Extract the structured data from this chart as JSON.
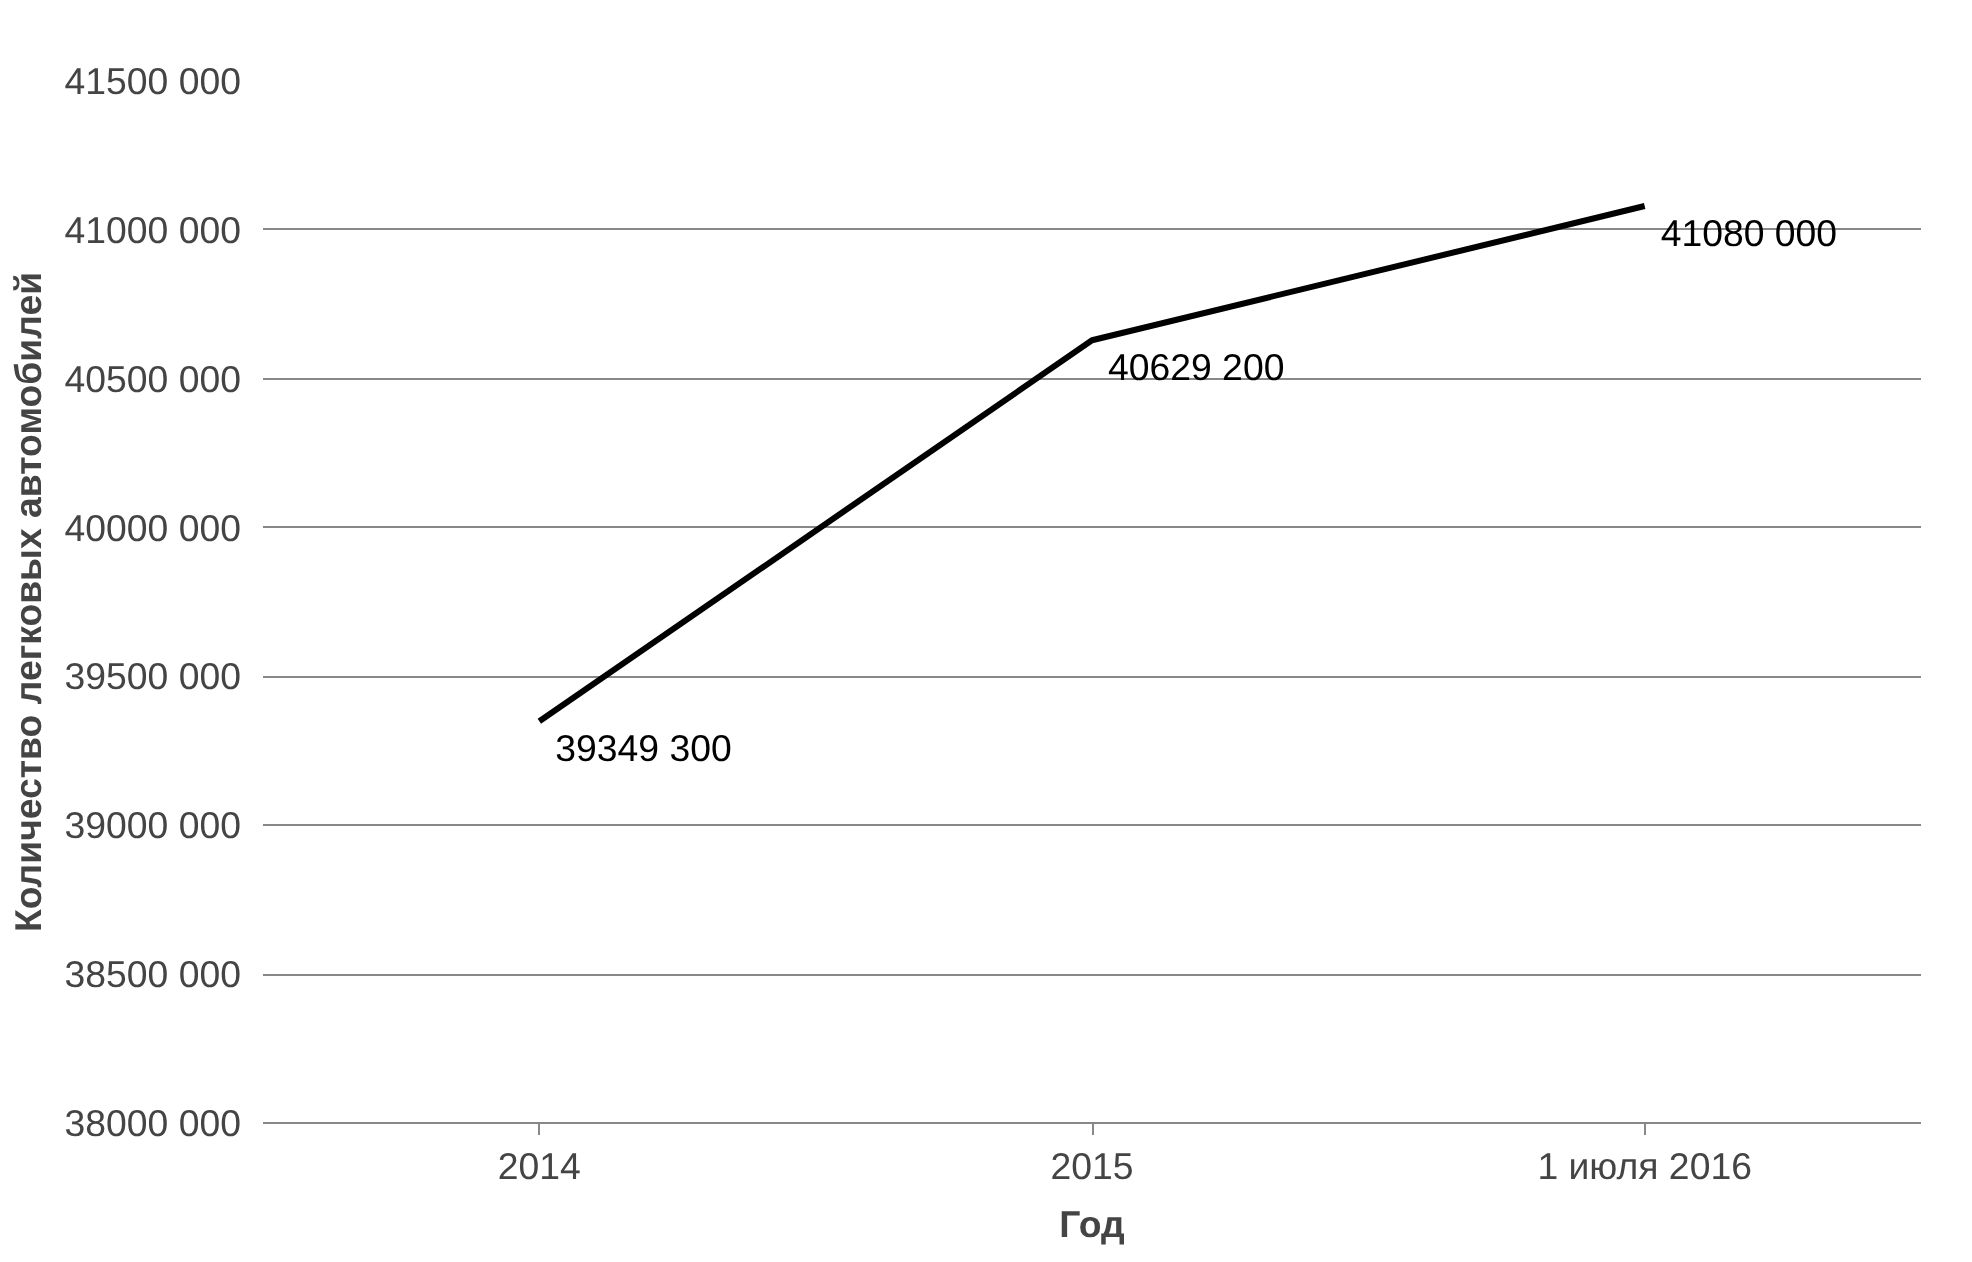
{
  "chart_data": {
    "type": "line",
    "xlabel": "Год",
    "ylabel": "Количество легковых автомобилей",
    "categories": [
      "2014",
      "2015",
      "1 июля 2016"
    ],
    "series": [
      {
        "color": "#000000",
        "values": [
          39349300,
          40629200,
          41080000
        ],
        "value_labels": [
          "39349 300",
          "40629 200",
          "41080 000"
        ]
      }
    ],
    "ylim": [
      38000000,
      41500000
    ],
    "yticks": [
      {
        "value": 38000000,
        "label": "38000 000"
      },
      {
        "value": 38500000,
        "label": "38500 000"
      },
      {
        "value": 39000000,
        "label": "39000 000"
      },
      {
        "value": 39500000,
        "label": "39500 000"
      },
      {
        "value": 40000000,
        "label": "40000 000"
      },
      {
        "value": 40500000,
        "label": "40500 000"
      },
      {
        "value": 41000000,
        "label": "41000 000"
      },
      {
        "value": 41500000,
        "label": "41500 000"
      }
    ],
    "grid": "y",
    "marker": "none",
    "line_style": "solid"
  }
}
